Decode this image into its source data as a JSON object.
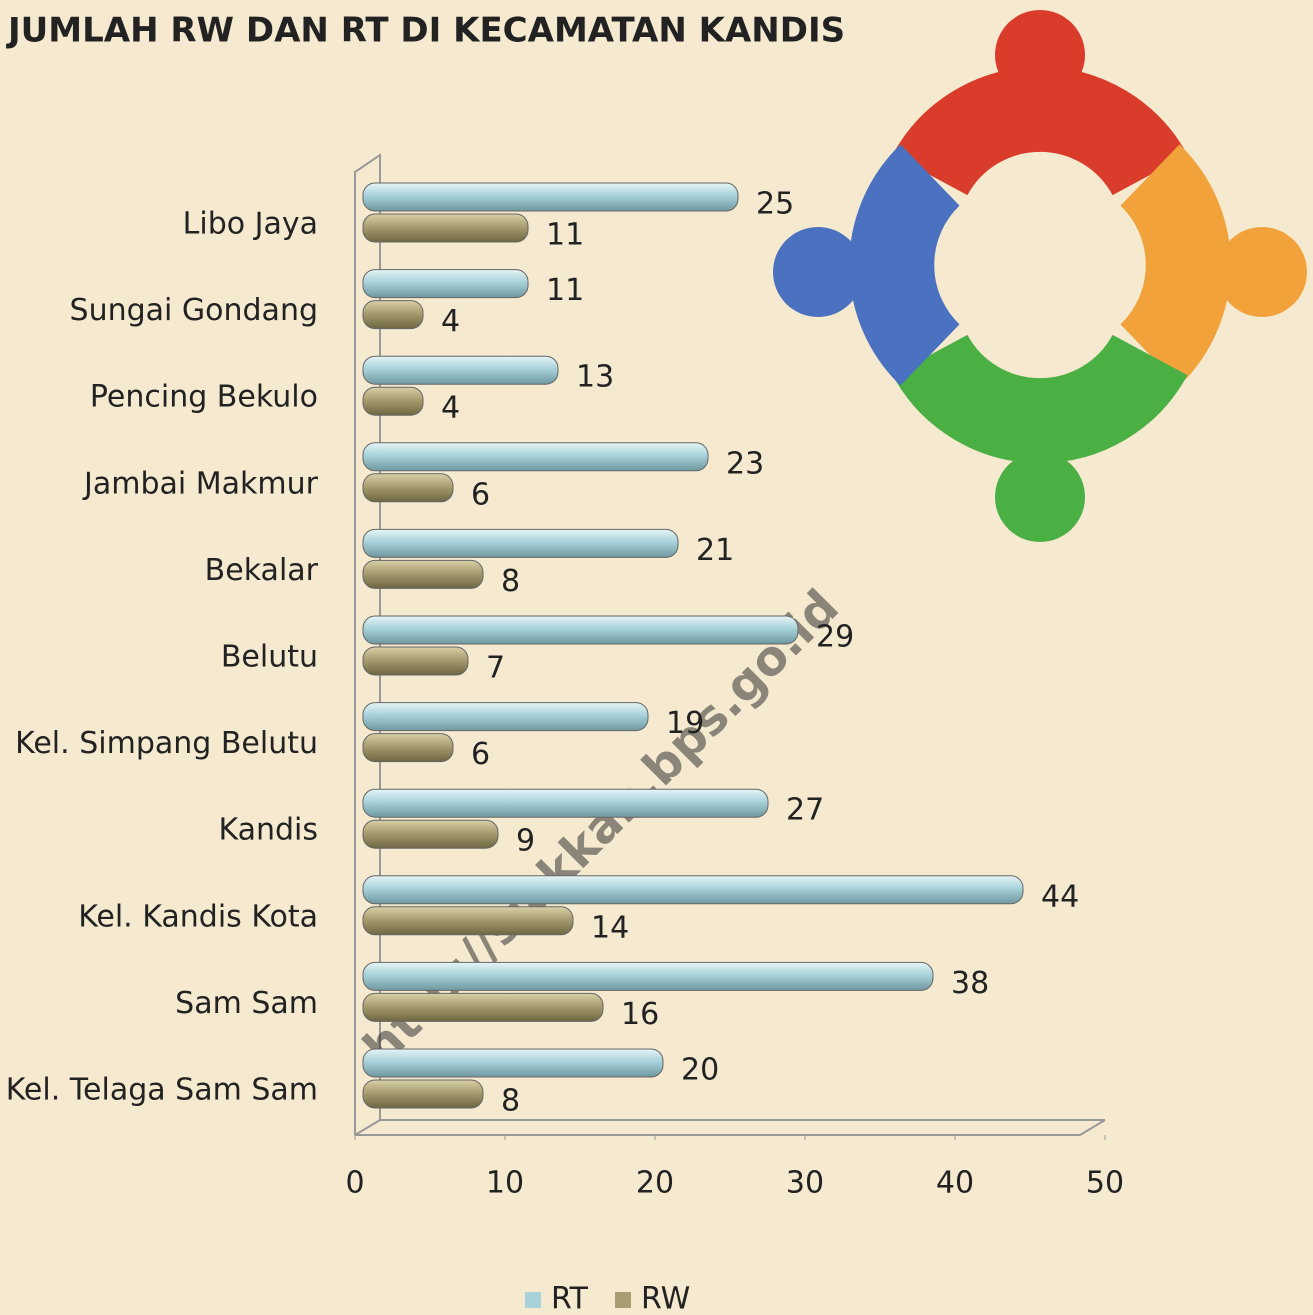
{
  "chart_data": {
    "type": "bar",
    "orientation": "horizontal",
    "title": "JUMLAH RW DAN RT DI KECAMATAN KANDIS",
    "watermark": "http://siakkab.bps.go.id",
    "categories": [
      "Libo Jaya",
      "Sungai Gondang",
      "Pencing Bekulo",
      "Jambai Makmur",
      "Bekalar",
      "Belutu",
      "Kel. Simpang Belutu",
      "Kandis",
      "Kel. Kandis Kota",
      "Sam Sam",
      "Kel. Telaga Sam Sam"
    ],
    "series": [
      {
        "name": "RT",
        "color": "#a8d2da",
        "values": [
          25,
          11,
          13,
          23,
          21,
          29,
          19,
          27,
          44,
          38,
          20
        ]
      },
      {
        "name": "RW",
        "color": "#a89d70",
        "values": [
          11,
          4,
          4,
          6,
          8,
          7,
          6,
          9,
          14,
          16,
          8
        ]
      }
    ],
    "xlim": [
      0,
      50
    ],
    "xticks": [
      0,
      10,
      20,
      30,
      40,
      50
    ],
    "legend": "bottom"
  }
}
